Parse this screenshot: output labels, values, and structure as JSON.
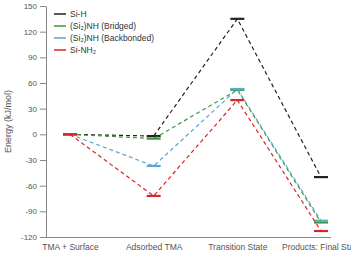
{
  "chart_data": {
    "type": "line",
    "y_label": "Energy (kJ/mol)",
    "categories": [
      "TMA + Surface",
      "Adsorbed TMA",
      "Transition State",
      "Products: Final State"
    ],
    "series": [
      {
        "name": "Si-H",
        "color": "#222222",
        "values": [
          0,
          -2,
          135,
          -50
        ]
      },
      {
        "name": "(Si₂)NH (Bridged)",
        "color": "#3a9a3a",
        "values": [
          0,
          -5,
          52,
          -103
        ]
      },
      {
        "name": "(Si₂)NH (Backbonded)",
        "color": "#5aa6d6",
        "values": [
          0,
          -37,
          53,
          -101
        ]
      },
      {
        "name": "Si-NH₂",
        "color": "#d62728",
        "values": [
          0,
          -72,
          40,
          -113
        ]
      }
    ],
    "ylim": [
      -120,
      150
    ],
    "yticks": [
      -120,
      -90,
      -60,
      -30,
      0,
      30,
      60,
      90,
      120,
      150
    ],
    "grid": false,
    "legend": "upper left",
    "line_style": "dashed"
  }
}
